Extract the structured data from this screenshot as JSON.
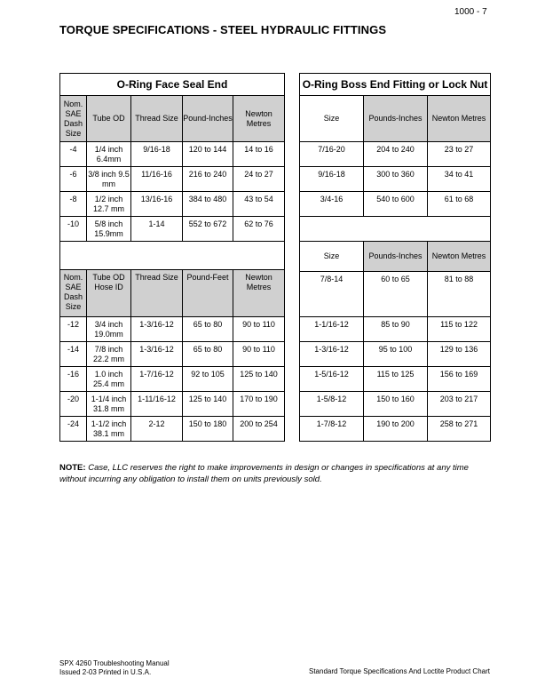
{
  "page_number": "1000 - 7",
  "title": "TORQUE SPECIFICATIONS - STEEL HYDRAULIC FITTINGS",
  "face_seal": {
    "title": "O-Ring Face Seal End",
    "headers1": [
      "Nom. SAE Dash Size",
      "Tube OD",
      "Thread Size",
      "Pound-Inches",
      "Newton Metres"
    ],
    "rows1": [
      [
        "-4",
        "1/4 inch 6.4mm",
        "9/16-18",
        "120 to 144",
        "14 to 16"
      ],
      [
        "-6",
        "3/8 inch 9.5 mm",
        "11/16-16",
        "216 to 240",
        "24 to 27"
      ],
      [
        "-8",
        "1/2 inch 12.7 mm",
        "13/16-16",
        "384 to 480",
        "43 to 54"
      ],
      [
        "-10",
        "5/8 inch 15.9mm",
        "1-14",
        "552 to 672",
        "62 to 76"
      ]
    ],
    "headers2": [
      "Nom. SAE Dash Size",
      "Tube OD Hose ID",
      "Thread Size",
      "Pound-Feet",
      "Newton Metres"
    ],
    "rows2": [
      [
        "-12",
        "3/4 inch 19.0mm",
        "1-3/16-12",
        "65 to 80",
        "90 to 110"
      ],
      [
        "-14",
        "7/8 inch 22.2 mm",
        "1-3/16-12",
        "65 to 80",
        "90 to 110"
      ],
      [
        "-16",
        "1.0 inch 25.4 mm",
        "1-7/16-12",
        "92 to 105",
        "125 to 140"
      ],
      [
        "-20",
        "1-1/4 inch 31.8 mm",
        "1-11/16-12",
        "125 to 140",
        "170 to 190"
      ],
      [
        "-24",
        "1-1/2 inch 38.1 mm",
        "2-12",
        "150 to 180",
        "200 to 254"
      ]
    ]
  },
  "boss_end": {
    "title": "O-Ring Boss End Fitting or Lock Nut",
    "headers1": [
      "Size",
      "Pounds-Inches",
      "Newton Metres"
    ],
    "rows1": [
      [
        "7/16-20",
        "204 to 240",
        "23 to 27"
      ],
      [
        "9/16-18",
        "300 to 360",
        "34 to 41"
      ],
      [
        "3/4-16",
        "540 to 600",
        "61 to 68"
      ]
    ],
    "headers2": [
      "Size",
      "Pounds-Inches",
      "Newton Metres"
    ],
    "rows2": [
      [
        "7/8-14",
        "60 to 65",
        "81 to 88"
      ],
      [
        "1-1/16-12",
        "85 to 90",
        "115 to 122"
      ],
      [
        "1-3/16-12",
        "95 to 100",
        "129 to 136"
      ],
      [
        "1-5/16-12",
        "115 to 125",
        "156 to 169"
      ],
      [
        "1-5/8-12",
        "150 to 160",
        "203 to 217"
      ],
      [
        "1-7/8-12",
        "190 to 200",
        "258 to 271"
      ]
    ]
  },
  "note": {
    "label": "NOTE:",
    "text": " Case, LLC reserves the right to make improvements in design or changes in specifications at any time without incurring any obligation to install them on units previously sold."
  },
  "footer": {
    "manual": "SPX 4260 Troubleshooting Manual",
    "issued": "Issued 2-03 Printed in U.S.A.",
    "chart": "Standard Torque Specifications And Loctite Product Chart"
  }
}
